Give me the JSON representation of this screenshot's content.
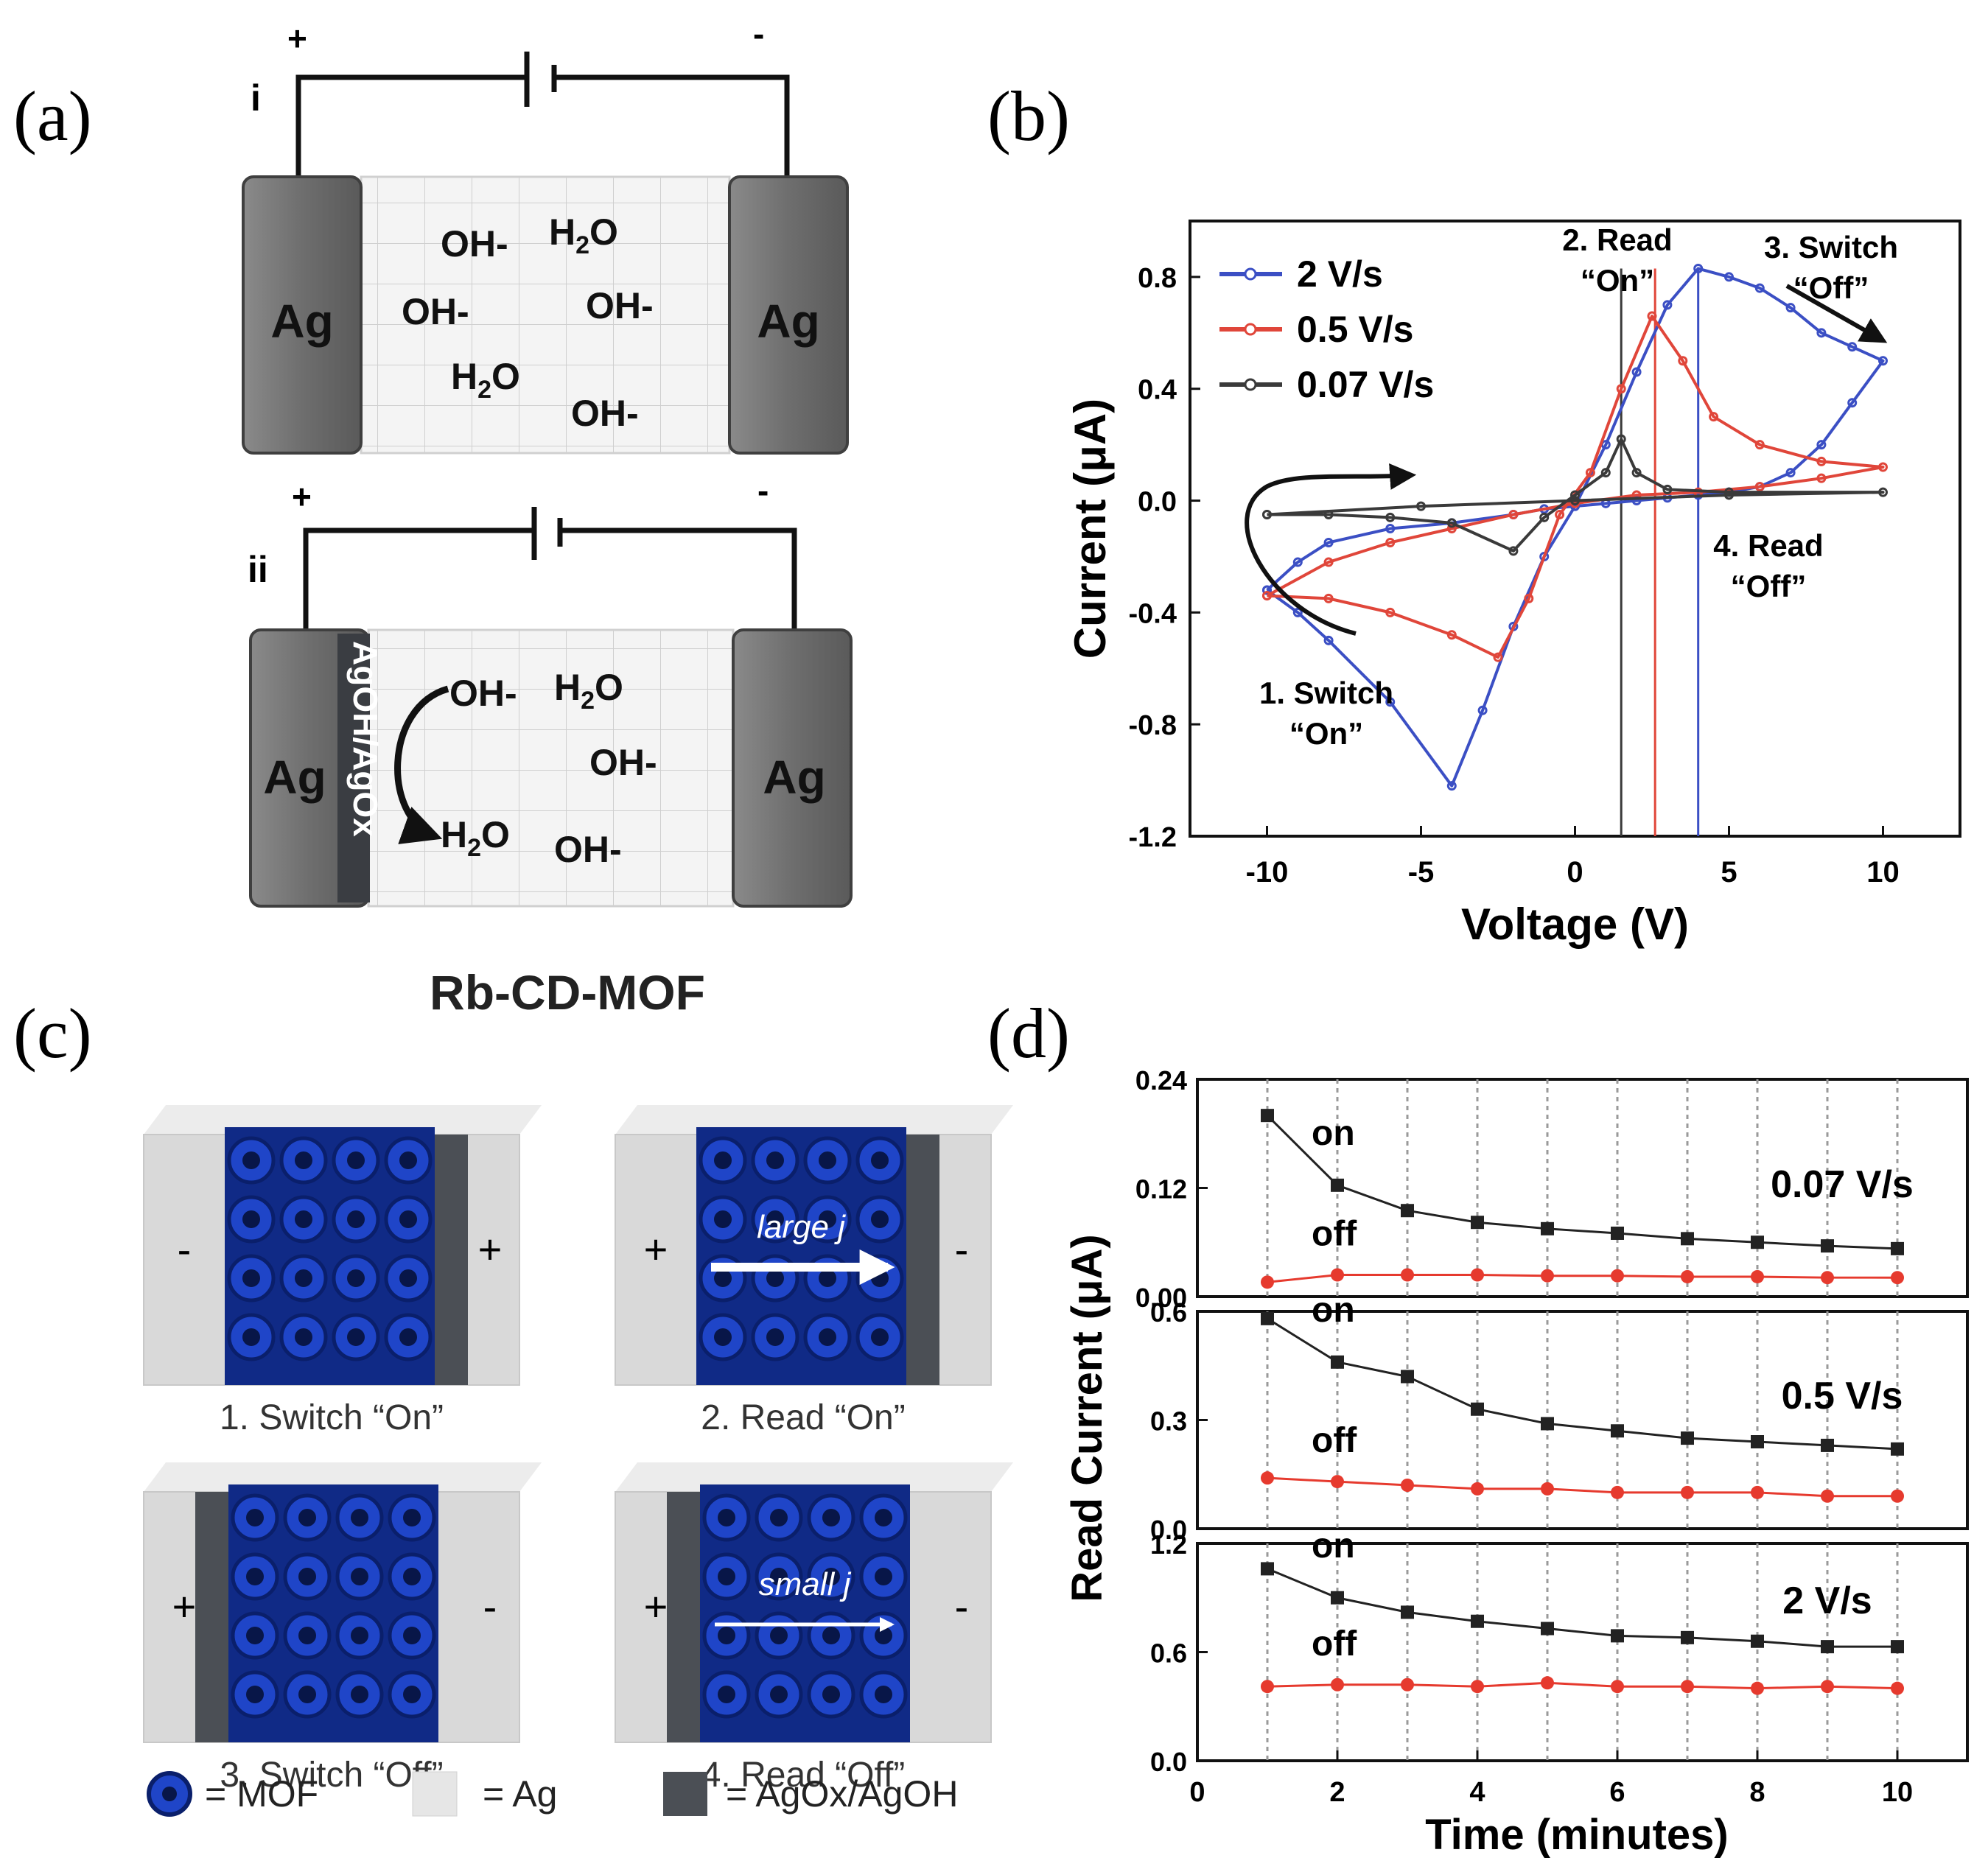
{
  "panel_labels": {
    "a": "(a)",
    "b": "(b)",
    "c": "(c)",
    "d": "(d)"
  },
  "panel_a": {
    "i": {
      "roman": "i",
      "plus": "+",
      "minus": "-",
      "left_electrode": "Ag",
      "right_electrode": "Ag",
      "species": [
        "OH-",
        "H2O",
        "OH-",
        "OH-",
        "H2O",
        "OH-"
      ]
    },
    "ii": {
      "roman": "ii",
      "plus": "+",
      "minus": "-",
      "left_electrode": "Ag",
      "right_electrode": "Ag",
      "layer": "AgOH/AgOx",
      "species": [
        "OH-",
        "H2O",
        "OH-",
        "H2O",
        "OH-"
      ]
    },
    "caption": "Rb-CD-MOF"
  },
  "panel_c": {
    "cells": [
      {
        "label": "1.  Switch “On”",
        "left_sign": "-",
        "right_sign": "+",
        "arrow": ""
      },
      {
        "label": "2. Read “On”",
        "left_sign": "+",
        "right_sign": "-",
        "arrow": "large j"
      },
      {
        "label": "3. Switch “Off”",
        "left_sign": "+",
        "right_sign": "-",
        "arrow": ""
      },
      {
        "label": "4. Read “Off”",
        "left_sign": "+",
        "right_sign": "-",
        "arrow": "small j"
      }
    ],
    "legend": [
      "= MOF",
      "= Ag",
      "= AgOx/AgOH"
    ],
    "colors": {
      "mof": "#1f45c8",
      "ag": "#d9d9d9",
      "oxide": "#4b4f55"
    }
  },
  "chart_data": [
    {
      "type": "line",
      "panel": "b",
      "xlabel": "Voltage (V)",
      "ylabel": "Current (μA)",
      "xlim": [
        -12.5,
        12.5
      ],
      "ylim": [
        -1.2,
        1.0
      ],
      "xticks": [
        -10,
        -5,
        0,
        5,
        10
      ],
      "yticks": [
        -1.2,
        -0.8,
        -0.4,
        0.0,
        0.4,
        0.8
      ],
      "legend_position": "top-left",
      "series": [
        {
          "name": "2 V/s",
          "color": "#3b4fc4",
          "x": [
            -10,
            -9,
            -8,
            -6,
            -4,
            -3,
            -2,
            -1,
            0,
            1,
            2,
            3,
            4,
            5,
            6,
            7,
            8,
            9,
            10,
            9,
            8,
            7,
            6,
            5,
            4,
            3,
            2,
            1,
            0,
            -1,
            -2,
            -4,
            -6,
            -8,
            -9,
            -10
          ],
          "y": [
            -0.32,
            -0.4,
            -0.5,
            -0.72,
            -1.02,
            -0.75,
            -0.45,
            -0.2,
            -0.02,
            0.2,
            0.46,
            0.7,
            0.83,
            0.8,
            0.76,
            0.69,
            0.6,
            0.55,
            0.5,
            0.35,
            0.2,
            0.1,
            0.05,
            0.03,
            0.02,
            0.01,
            0.0,
            -0.01,
            -0.02,
            -0.03,
            -0.05,
            -0.08,
            -0.1,
            -0.15,
            -0.22,
            -0.32
          ]
        },
        {
          "name": "0.5 V/s",
          "color": "#e0463a",
          "x": [
            -10,
            -8,
            -6,
            -4,
            -2.5,
            -1.5,
            -0.5,
            0.5,
            1.5,
            2.5,
            3.5,
            4.5,
            6,
            8,
            10,
            8,
            6,
            4,
            2,
            0,
            -2,
            -4,
            -6,
            -8,
            -10
          ],
          "y": [
            -0.34,
            -0.35,
            -0.4,
            -0.48,
            -0.56,
            -0.35,
            -0.05,
            0.1,
            0.4,
            0.66,
            0.5,
            0.3,
            0.2,
            0.14,
            0.12,
            0.08,
            0.05,
            0.03,
            0.02,
            -0.01,
            -0.05,
            -0.1,
            -0.15,
            -0.22,
            -0.34
          ]
        },
        {
          "name": "0.07 V/s",
          "color": "#3a3a3a",
          "x": [
            -10,
            -8,
            -6,
            -4,
            -2,
            -1,
            0,
            1,
            1.5,
            2,
            3,
            5,
            10,
            5,
            0,
            -5,
            -10
          ],
          "y": [
            -0.05,
            -0.05,
            -0.06,
            -0.08,
            -0.18,
            -0.06,
            0.02,
            0.1,
            0.22,
            0.1,
            0.04,
            0.03,
            0.03,
            0.02,
            0.0,
            -0.02,
            -0.05
          ]
        }
      ],
      "vlines": [
        {
          "x": 1.5,
          "color": "#3a3a3a"
        },
        {
          "x": 2.6,
          "color": "#e0463a"
        },
        {
          "x": 4.0,
          "color": "#3b4fc4"
        }
      ],
      "annotations": [
        {
          "line1": "1. Switch",
          "line2": "“On”"
        },
        {
          "line1": "2. Read",
          "line2": "“On”"
        },
        {
          "line1": "3. Switch",
          "line2": "“Off”"
        },
        {
          "line1": "4. Read",
          "line2": "“Off”"
        }
      ]
    },
    {
      "type": "line",
      "panel": "d",
      "xlabel": "Time (minutes)",
      "ylabel": "Read Current (μA)",
      "xlim": [
        0,
        11
      ],
      "xticks": [
        0,
        2,
        4,
        6,
        8,
        10
      ],
      "subplots": [
        {
          "label": "0.07 V/s",
          "ylim": [
            0.0,
            0.24
          ],
          "yticks": [
            "0.00",
            "0.12",
            "0.24"
          ],
          "x": [
            1,
            2,
            3,
            4,
            5,
            6,
            7,
            8,
            9,
            10
          ],
          "series": [
            {
              "name": "on",
              "color": "#222222",
              "values": [
                0.2,
                0.123,
                0.095,
                0.082,
                0.075,
                0.07,
                0.064,
                0.06,
                0.056,
                0.053
              ]
            },
            {
              "name": "off",
              "color": "#e63a2e",
              "values": [
                0.016,
                0.024,
                0.024,
                0.024,
                0.023,
                0.023,
                0.022,
                0.022,
                0.021,
                0.021
              ]
            }
          ]
        },
        {
          "label": "0.5 V/s",
          "ylim": [
            0.0,
            0.6
          ],
          "yticks": [
            "0.0",
            "0.3",
            "0.6"
          ],
          "x": [
            1,
            2,
            3,
            4,
            5,
            6,
            7,
            8,
            9,
            10
          ],
          "series": [
            {
              "name": "on",
              "color": "#222222",
              "values": [
                0.58,
                0.46,
                0.42,
                0.33,
                0.29,
                0.27,
                0.25,
                0.24,
                0.23,
                0.22
              ]
            },
            {
              "name": "off",
              "color": "#e63a2e",
              "values": [
                0.14,
                0.13,
                0.12,
                0.11,
                0.11,
                0.1,
                0.1,
                0.1,
                0.09,
                0.09
              ]
            }
          ]
        },
        {
          "label": "2 V/s",
          "ylim": [
            0.0,
            1.2
          ],
          "yticks": [
            "0.0",
            "0.6",
            "1.2"
          ],
          "x": [
            1,
            2,
            3,
            4,
            5,
            6,
            7,
            8,
            9,
            10
          ],
          "series": [
            {
              "name": "on",
              "color": "#222222",
              "values": [
                1.06,
                0.9,
                0.82,
                0.77,
                0.73,
                0.69,
                0.68,
                0.66,
                0.63,
                0.63
              ]
            },
            {
              "name": "off",
              "color": "#e63a2e",
              "values": [
                0.41,
                0.42,
                0.42,
                0.41,
                0.43,
                0.41,
                0.41,
                0.4,
                0.41,
                0.4
              ]
            }
          ]
        }
      ]
    }
  ]
}
